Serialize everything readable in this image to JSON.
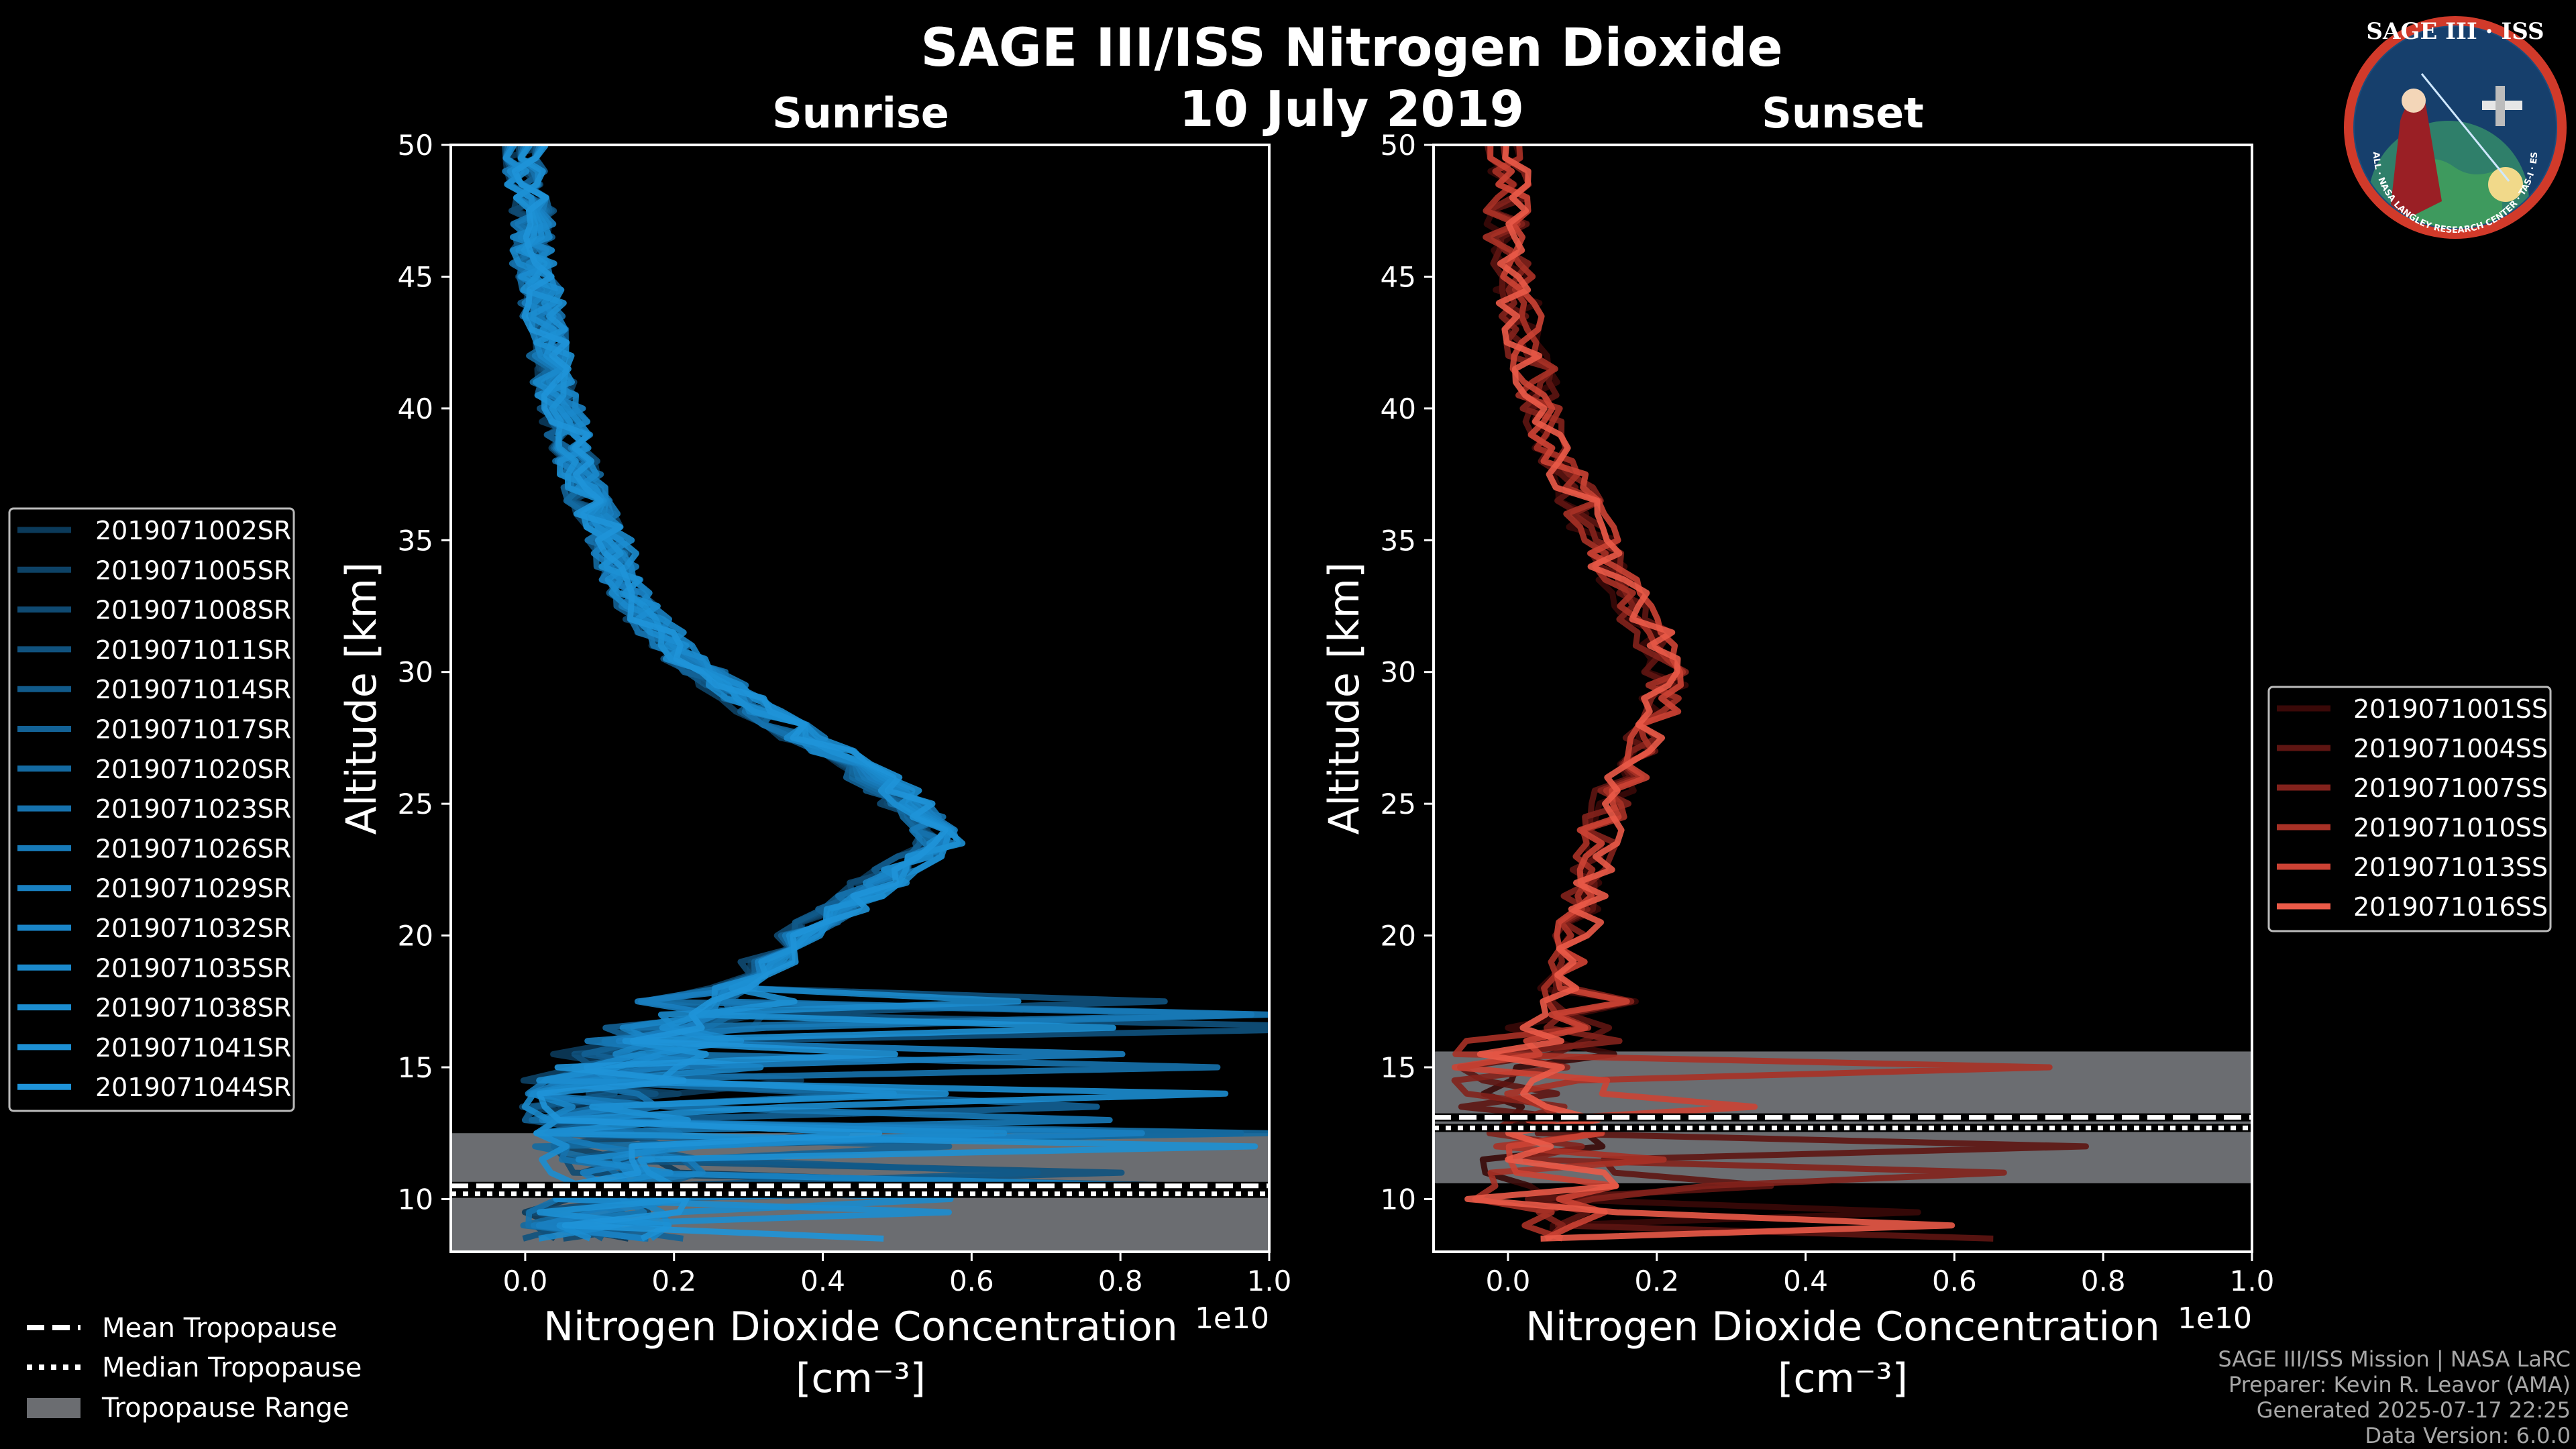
{
  "figure": {
    "title": "SAGE III/ISS Nitrogen Dioxide",
    "date": "10 July 2019"
  },
  "logo": {
    "text": "SAGE III · ISS",
    "ring_text": "BALL · NASA LANGLEY RESEARCH CENTER · TAS-I · ESA"
  },
  "credits": {
    "line1": "SAGE III/ISS Mission | NASA LaRC",
    "line2": "Preparer: Kevin R. Leavor (AMA)",
    "line3": "Generated 2025-07-17 22:25",
    "line4": "Data Version: 6.0.0"
  },
  "tropopause_legend": {
    "mean": "Mean Tropopause",
    "median": "Median Tropopause",
    "range": "Tropopause Range"
  },
  "colors": {
    "background": "#000000",
    "sunrise": "#1f8fd1",
    "sunset": "#e8574a",
    "tropopause_fill": "#6b6d71"
  },
  "chart_data": [
    {
      "id": "sunrise",
      "type": "line",
      "title": "Sunrise",
      "xlabel": "Nitrogen Dioxide Concentration",
      "xunit": "[cm⁻³]",
      "xscale_label": "1e10",
      "ylabel": "Altitude [km]",
      "xlim": [
        -0.1,
        1.0
      ],
      "ylim": [
        8,
        50
      ],
      "xticks": [
        "0.0",
        "0.2",
        "0.4",
        "0.6",
        "0.8",
        "1.0"
      ],
      "xtick_values": [
        0.0,
        0.2,
        0.4,
        0.6,
        0.8,
        1.0
      ],
      "yticks": [
        10,
        15,
        20,
        25,
        30,
        35,
        40,
        45,
        50
      ],
      "tropopause": {
        "mean": 10.5,
        "median": 10.2,
        "range": [
          8,
          12.5
        ]
      },
      "legend_position": "left",
      "mean_profile": {
        "alt": [
          8.5,
          9.5,
          10.5,
          11.5,
          12.5,
          13.5,
          14.5,
          15.5,
          16.5,
          17.5,
          18.5,
          19.5,
          20.5,
          21.5,
          22.5,
          23.5,
          24.5,
          25.5,
          26.5,
          27.5,
          28.5,
          29.5,
          30.5,
          31.5,
          32.5,
          33.5,
          34.5,
          35.5,
          36.5,
          37.5,
          38.5,
          39.5,
          40.5,
          41.5,
          42.5,
          43.5,
          44.5,
          45.5,
          46.5,
          47.5,
          48.5,
          49.5
        ],
        "value": [
          0.1,
          0.1,
          0.12,
          0.12,
          0.11,
          0.09,
          0.1,
          0.14,
          0.2,
          0.24,
          0.28,
          0.33,
          0.37,
          0.42,
          0.47,
          0.52,
          0.5,
          0.46,
          0.41,
          0.35,
          0.3,
          0.25,
          0.2,
          0.17,
          0.14,
          0.12,
          0.11,
          0.1,
          0.08,
          0.07,
          0.06,
          0.05,
          0.04,
          0.03,
          0.03,
          0.02,
          0.02,
          0.01,
          0.01,
          0.01,
          0.0,
          0.0
        ]
      },
      "series": [
        {
          "name": "2019071002SR",
          "color": "#0b3a5a"
        },
        {
          "name": "2019071005SR",
          "color": "#0d4266"
        },
        {
          "name": "2019071008SR",
          "color": "#0f4a72"
        },
        {
          "name": "2019071011SR",
          "color": "#10527e"
        },
        {
          "name": "2019071014SR",
          "color": "#115a8a"
        },
        {
          "name": "2019071017SR",
          "color": "#136296"
        },
        {
          "name": "2019071020SR",
          "color": "#146aa1"
        },
        {
          "name": "2019071023SR",
          "color": "#1672ad"
        },
        {
          "name": "2019071026SR",
          "color": "#177ab8"
        },
        {
          "name": "2019071029SR",
          "color": "#1980c1"
        },
        {
          "name": "2019071032SR",
          "color": "#1a85c7"
        },
        {
          "name": "2019071035SR",
          "color": "#1b89cc"
        },
        {
          "name": "2019071038SR",
          "color": "#1c8dd0"
        },
        {
          "name": "2019071041SR",
          "color": "#1d90d4"
        },
        {
          "name": "2019071044SR",
          "color": "#1f93d8"
        }
      ]
    },
    {
      "id": "sunset",
      "type": "line",
      "title": "Sunset",
      "xlabel": "Nitrogen Dioxide Concentration",
      "xunit": "[cm⁻³]",
      "xscale_label": "1e10",
      "ylabel": "Altitude [km]",
      "xlim": [
        -0.1,
        1.0
      ],
      "ylim": [
        8,
        50
      ],
      "xticks": [
        "0.0",
        "0.2",
        "0.4",
        "0.6",
        "0.8",
        "1.0"
      ],
      "xtick_values": [
        0.0,
        0.2,
        0.4,
        0.6,
        0.8,
        1.0
      ],
      "yticks": [
        10,
        15,
        20,
        25,
        30,
        35,
        40,
        45,
        50
      ],
      "tropopause": {
        "mean": 13.1,
        "median": 12.7,
        "range": [
          10.6,
          15.6
        ]
      },
      "legend_position": "right",
      "mean_profile": {
        "alt": [
          8.5,
          9.5,
          10.5,
          11.5,
          12.5,
          13.5,
          14.5,
          15.5,
          16.5,
          17.5,
          18.5,
          19.5,
          20.5,
          21.5,
          22.5,
          23.5,
          24.5,
          25.5,
          26.5,
          27.5,
          28.5,
          29.5,
          30.5,
          31.5,
          32.5,
          33.5,
          34.5,
          35.5,
          36.5,
          37.5,
          38.5,
          39.5,
          40.5,
          41.5,
          42.5,
          43.5,
          44.5,
          45.5,
          46.5,
          47.5,
          48.5,
          49.5
        ],
        "value": [
          0.05,
          0.05,
          0.06,
          0.05,
          0.04,
          0.03,
          0.03,
          0.04,
          0.06,
          0.08,
          0.09,
          0.1,
          0.11,
          0.12,
          0.13,
          0.14,
          0.15,
          0.17,
          0.19,
          0.21,
          0.23,
          0.25,
          0.24,
          0.22,
          0.19,
          0.17,
          0.15,
          0.13,
          0.11,
          0.09,
          0.07,
          0.06,
          0.05,
          0.04,
          0.03,
          0.02,
          0.01,
          0.01,
          0.0,
          0.0,
          0.0,
          0.0
        ]
      },
      "series": [
        {
          "name": "2019071001SS",
          "color": "#3a0908"
        },
        {
          "name": "2019071004SS",
          "color": "#5e1512"
        },
        {
          "name": "2019071007SS",
          "color": "#83221c"
        },
        {
          "name": "2019071010SS",
          "color": "#a83126"
        },
        {
          "name": "2019071013SS",
          "color": "#cc4234"
        },
        {
          "name": "2019071016SS",
          "color": "#ea5a48"
        }
      ]
    }
  ]
}
